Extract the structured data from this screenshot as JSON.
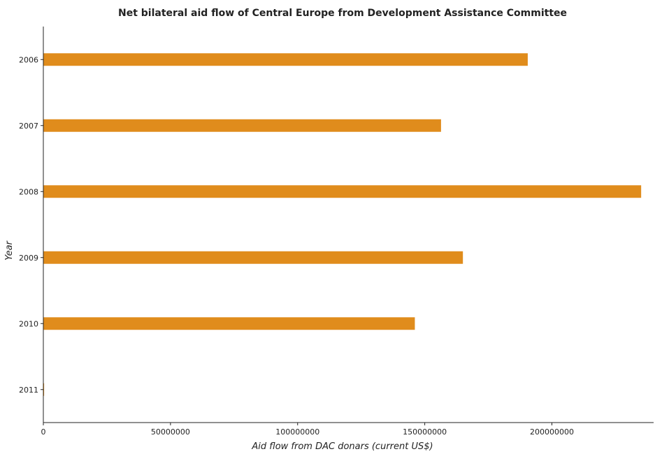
{
  "chart_data": {
    "type": "bar",
    "orientation": "horizontal",
    "title": "Net bilateral aid flow of Central Europe from Development Assistance Committee",
    "xlabel": "Aid flow from DAC donars (current US$)",
    "ylabel": "Year",
    "categories": [
      "2006",
      "2007",
      "2008",
      "2009",
      "2010",
      "2011"
    ],
    "values": [
      190500000,
      156400000,
      235100000,
      165000000,
      146100000,
      300000
    ],
    "xlim": [
      0,
      240000000
    ],
    "xticks": [
      0,
      50000000,
      100000000,
      150000000,
      200000000
    ],
    "xtick_labels": [
      "0",
      "50000000",
      "100000000",
      "150000000",
      "200000000"
    ],
    "grid": false,
    "legend": "none",
    "bar_color": "#e08c1c"
  }
}
